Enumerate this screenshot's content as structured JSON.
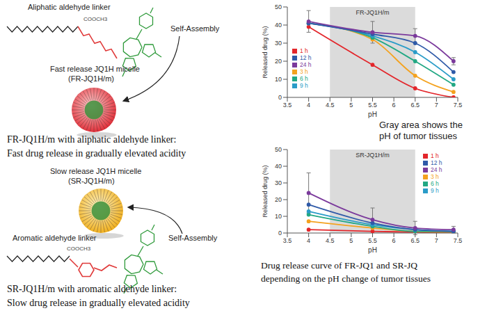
{
  "chart_data": [
    {
      "type": "line",
      "title": "FR-JQ1H/m",
      "x_label": "pH",
      "y_label": "Released drug (%)",
      "x": [
        4,
        5.5,
        6.5,
        7.4
      ],
      "xlim": [
        3.5,
        7.5
      ],
      "xticks": [
        3.5,
        4,
        4.5,
        5,
        5.5,
        6,
        6.5,
        7,
        7.5
      ],
      "ylim": [
        0,
        50
      ],
      "yticks": [
        0,
        10,
        20,
        30,
        40,
        50
      ],
      "grid": false,
      "legend": "lower left",
      "shaded_region": [
        4.5,
        6.5
      ],
      "series": [
        {
          "name": "1 h",
          "color": "#e3262b",
          "values": [
            39,
            18,
            5,
            0
          ]
        },
        {
          "name": "3 h",
          "color": "#f4a21f",
          "values": [
            41,
            32,
            12,
            3
          ]
        },
        {
          "name": "6 h",
          "color": "#22a884",
          "values": [
            41,
            33,
            20,
            7
          ]
        },
        {
          "name": "9 h",
          "color": "#2a9cc8",
          "values": [
            41,
            34,
            25,
            10
          ]
        },
        {
          "name": "12 h",
          "color": "#2f5aa8",
          "values": [
            41,
            35,
            30,
            14
          ]
        },
        {
          "name": "24 h",
          "color": "#7b3a9c",
          "values": [
            42,
            36,
            34,
            20
          ],
          "errors": [
            6,
            6,
            4,
            2
          ]
        }
      ]
    },
    {
      "type": "line",
      "title": "SR-JQ1H/m",
      "x_label": "pH",
      "y_label": "Released drug (%)",
      "x": [
        4,
        5.5,
        6.5,
        7.4
      ],
      "xlim": [
        3.5,
        7.5
      ],
      "xticks": [
        3.5,
        4,
        4.5,
        5,
        5.5,
        6,
        6.5,
        7,
        7.5
      ],
      "ylim": [
        0,
        50
      ],
      "yticks": [
        0,
        10,
        20,
        30,
        40,
        50
      ],
      "grid": false,
      "legend": "upper right",
      "shaded_region": [
        4.5,
        6.5
      ],
      "series": [
        {
          "name": "1 h",
          "color": "#e3262b",
          "values": [
            2,
            1,
            0.5,
            0
          ]
        },
        {
          "name": "3 h",
          "color": "#f4a21f",
          "values": [
            7,
            3,
            1,
            0.5
          ]
        },
        {
          "name": "6 h",
          "color": "#22a884",
          "values": [
            11,
            4,
            1,
            1
          ]
        },
        {
          "name": "9 h",
          "color": "#2a9cc8",
          "values": [
            13,
            5,
            2,
            1
          ]
        },
        {
          "name": "12 h",
          "color": "#2f5aa8",
          "values": [
            17,
            6,
            2,
            1
          ]
        },
        {
          "name": "24 h",
          "color": "#7b3a9c",
          "values": [
            24,
            8,
            3,
            2
          ],
          "errors": [
            12,
            7,
            4,
            2
          ]
        }
      ]
    }
  ],
  "diagram": {
    "top": {
      "linker_label": "Aliphatic aldehyde linker",
      "ester_label": "COOCH3",
      "arrow_label": "Self-Assembly",
      "micelle_label": [
        "Fast release JQ1H micelle",
        "(FR-JQ1H/m)"
      ],
      "caption": [
        "FR-JQ1H/m with aliphatic aldehyde linker:",
        "Fast drug release in gradually elevated acidity"
      ]
    },
    "bottom": {
      "linker_label": "Aromatic aldehyde linker",
      "ester_label": "COOCH3",
      "arrow_label": "Self-Assembly",
      "micelle_label": [
        "Slow release JQ1H micelle",
        "(SR-JQ1H/m)"
      ],
      "caption": [
        "SR-JQ1H/m with aromatic aldehyde linker:",
        "Slow drug release in gradually elevated acidity"
      ]
    },
    "note": [
      "Gray area shows the",
      "pH of tumor tissues"
    ],
    "caption": [
      "Drug release curve of FR-JQ1 and SR-JQ",
      "depending on the pH change of tumor tissues"
    ]
  }
}
